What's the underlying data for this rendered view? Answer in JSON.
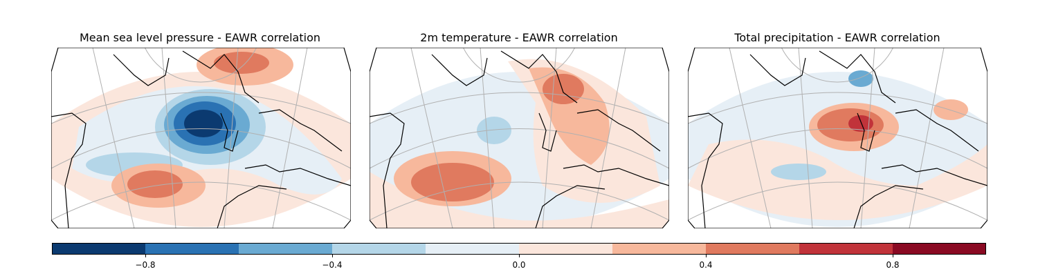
{
  "panels": [
    {
      "title": "Mean sea level pressure - EAWR correlation",
      "variable": "mslp"
    },
    {
      "title": "2m temperature - EAWR correlation",
      "variable": "t2m"
    },
    {
      "title": "Total precipitation - EAWR correlation",
      "variable": "tp"
    }
  ],
  "colorbar": {
    "colormap": "RdBu_r",
    "range": [
      -1.0,
      1.0
    ],
    "bin_colors": [
      "#0b3a70",
      "#2a72b3",
      "#6aaad2",
      "#b4d6e8",
      "#e6eff6",
      "#fbe6dc",
      "#f7b89c",
      "#e07a5f",
      "#c1333a",
      "#8a0a23"
    ],
    "ticks": [
      "−0.8",
      "−0.4",
      "0.0",
      "0.4",
      "0.8"
    ]
  },
  "colors": {
    "frame": "#000000",
    "graticule": "#b0b0b0",
    "coast": "#000000"
  }
}
